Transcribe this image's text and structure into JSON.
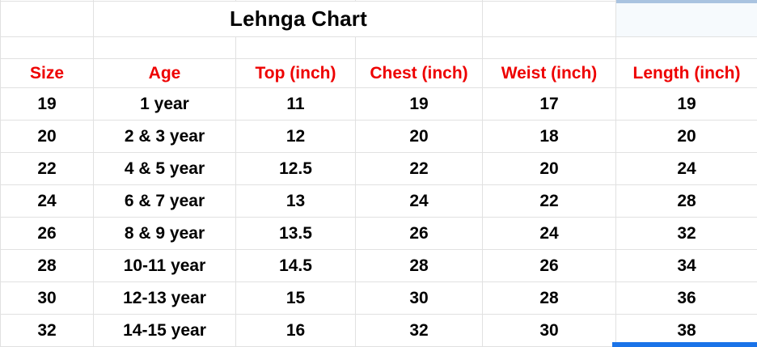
{
  "sheet": {
    "title": "Lehnga Chart",
    "columns": [
      {
        "label": "Size"
      },
      {
        "label": "Age"
      },
      {
        "label": "Top (inch)"
      },
      {
        "label": "Chest (inch)"
      },
      {
        "label": "Weist (inch)"
      },
      {
        "label": "Length (inch)"
      }
    ],
    "rows": [
      {
        "size": "19",
        "age": "1 year",
        "top": "11",
        "chest": "19",
        "weist": "17",
        "length": "19"
      },
      {
        "size": "20",
        "age": "2 & 3 year",
        "top": "12",
        "chest": "20",
        "weist": "18",
        "length": "20"
      },
      {
        "size": "22",
        "age": "4 & 5 year",
        "top": "12.5",
        "chest": "22",
        "weist": "20",
        "length": "24"
      },
      {
        "size": "24",
        "age": "6 & 7 year",
        "top": "13",
        "chest": "24",
        "weist": "22",
        "length": "28"
      },
      {
        "size": "26",
        "age": "8 & 9 year",
        "top": "13.5",
        "chest": "26",
        "weist": "24",
        "length": "32"
      },
      {
        "size": "28",
        "age": "10-11 year",
        "top": "14.5",
        "chest": "28",
        "weist": "26",
        "length": "34"
      },
      {
        "size": "30",
        "age": "12-13 year",
        "top": "15",
        "chest": "30",
        "weist": "28",
        "length": "36"
      },
      {
        "size": "32",
        "age": "14-15 year",
        "top": "16",
        "chest": "32",
        "weist": "30",
        "length": "38"
      }
    ],
    "colors": {
      "header_text": "#ee0000",
      "gridline": "#e1e1e1",
      "selection_active": "#1a73e8",
      "selection_inactive": "#a9c3e0"
    }
  }
}
